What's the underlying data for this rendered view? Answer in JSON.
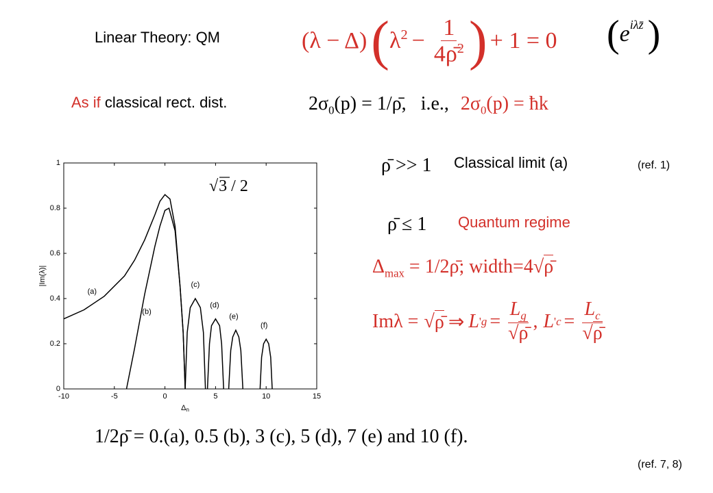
{
  "title": "Linear Theory: QM",
  "dispersion": {
    "left": "(λ − Δ)",
    "open": "(",
    "lambda": "λ",
    "exp": "2",
    "minus": "−",
    "num": "1",
    "den": "4ρ̄",
    "den_exp": "2",
    "close": ")",
    "right": "+ 1 = 0"
  },
  "mode": {
    "open": "(",
    "base": "e",
    "exp": "iλz̄",
    "close": ")"
  },
  "distribution": {
    "as_if": "As if",
    "rest": "classical rect. dist.",
    "eq_a": "2σ",
    "sub_a": "0",
    "eq_a_rest": "(p) = 1/ρ̄,",
    "ie": "i.e.,",
    "eq_b": "2σ",
    "sub_b": "0",
    "eq_b_rest": "(p) = ħk"
  },
  "classical": {
    "condition": "ρ̄ >> 1",
    "label": "Classical limit (a)",
    "ref": "(ref. 1)"
  },
  "quantum": {
    "condition": "ρ̄ ≤ 1",
    "label": "Quantum regime"
  },
  "delta_max": {
    "delta": "Δ",
    "sub": "max",
    "rest": "= 1/2ρ̄; width=4",
    "radical": "√",
    "radicand": "ρ̄"
  },
  "growth": {
    "lhs": "Imλ =",
    "radical": "√",
    "radicand": "ρ̄",
    "implies": "⇒",
    "lg": "L",
    "lg_prime": "'",
    "lg_sub": "g",
    "eq1": "=",
    "lg_num": "L",
    "lg_num_sub": "g",
    "comma": ",",
    "lc": "L",
    "lc_prime": "'",
    "lc_sub": "c",
    "eq2": "=",
    "lc_num": "L",
    "lc_num_sub": "c"
  },
  "caption": "1/2ρ̄ = 0.(a), 0.5 (b), 3 (c), 5 (d), 7 (e) and 10 (f).",
  "ref_bottom": "(ref. 7, 8)",
  "chart_data": {
    "type": "line",
    "x_label": "Δ",
    "x_label_sub": "n",
    "y_label": "|Im(λ)|",
    "annotation": {
      "radical": "√",
      "radicand": "3",
      "rest": "/ 2"
    },
    "xlim": [
      -10,
      15
    ],
    "ylim": [
      0,
      1
    ],
    "xticks": [
      -10,
      -5,
      0,
      5,
      10,
      15
    ],
    "yticks": [
      0,
      0.2,
      0.4,
      0.6,
      0.8,
      1
    ],
    "series": [
      {
        "name": "(a)",
        "color": "#000000",
        "x": [
          -10,
          -8,
          -6,
          -4,
          -3,
          -2,
          -1,
          -0.5,
          0,
          0.5,
          1,
          1.5,
          1.8,
          2
        ],
        "values": [
          0.31,
          0.35,
          0.41,
          0.5,
          0.57,
          0.66,
          0.77,
          0.83,
          0.86,
          0.84,
          0.72,
          0.45,
          0.25,
          0
        ]
      },
      {
        "name": "(b)",
        "color": "#000000",
        "x": [
          -3.8,
          -3,
          -2,
          -1,
          -0.5,
          0,
          0.4,
          1,
          1.5,
          1.8,
          2
        ],
        "values": [
          0,
          0.18,
          0.42,
          0.63,
          0.72,
          0.79,
          0.8,
          0.7,
          0.45,
          0.25,
          0
        ]
      },
      {
        "name": "(c)",
        "color": "#000000",
        "x": [
          2,
          2.2,
          2.5,
          3,
          3.5,
          3.8,
          4
        ],
        "values": [
          0,
          0.25,
          0.36,
          0.4,
          0.36,
          0.25,
          0
        ]
      },
      {
        "name": "(d)",
        "color": "#000000",
        "x": [
          4.2,
          4.4,
          4.6,
          5,
          5.4,
          5.6,
          5.8
        ],
        "values": [
          0,
          0.2,
          0.28,
          0.31,
          0.28,
          0.2,
          0
        ]
      },
      {
        "name": "(e)",
        "color": "#000000",
        "x": [
          6.3,
          6.5,
          6.7,
          7,
          7.3,
          7.5,
          7.7
        ],
        "values": [
          0,
          0.17,
          0.23,
          0.26,
          0.23,
          0.17,
          0
        ]
      },
      {
        "name": "(f)",
        "color": "#000000",
        "x": [
          9.4,
          9.55,
          9.75,
          10,
          10.25,
          10.45,
          10.6
        ],
        "values": [
          0,
          0.14,
          0.2,
          0.22,
          0.2,
          0.14,
          0
        ]
      }
    ]
  }
}
